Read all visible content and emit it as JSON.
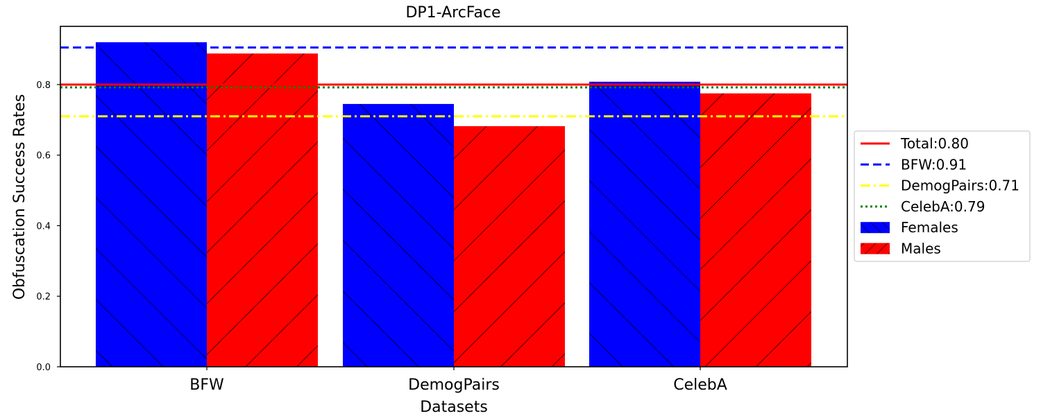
{
  "chart_data": {
    "type": "bar",
    "title": "DP1-ArcFace",
    "xlabel": "Datasets",
    "ylabel": "Obfuscation Success Rates",
    "categories": [
      "BFW",
      "DemogPairs",
      "CelebA"
    ],
    "ylim": [
      0,
      0.965
    ],
    "yticks": [
      "0.0",
      "0.2",
      "0.4",
      "0.6",
      "0.8"
    ],
    "series": [
      {
        "name": "Females",
        "color": "#0000ff",
        "hatch": "backslash",
        "values": [
          0.92,
          0.745,
          0.808
        ]
      },
      {
        "name": "Males",
        "color": "#ff0000",
        "hatch": "slash",
        "values": [
          0.888,
          0.682,
          0.775
        ]
      }
    ],
    "reference_lines": [
      {
        "label": "Total:0.80",
        "value": 0.8,
        "color": "#ff0000",
        "style": "solid"
      },
      {
        "label": "BFW:0.91",
        "value": 0.905,
        "color": "#0000ff",
        "style": "dashed"
      },
      {
        "label": "DemogPairs:0.71",
        "value": 0.71,
        "color": "#ffff00",
        "style": "dashdot"
      },
      {
        "label": "CelebA:0.79",
        "value": 0.792,
        "color": "#008000",
        "style": "dotted"
      }
    ],
    "legend_position": "right",
    "grid": false
  }
}
